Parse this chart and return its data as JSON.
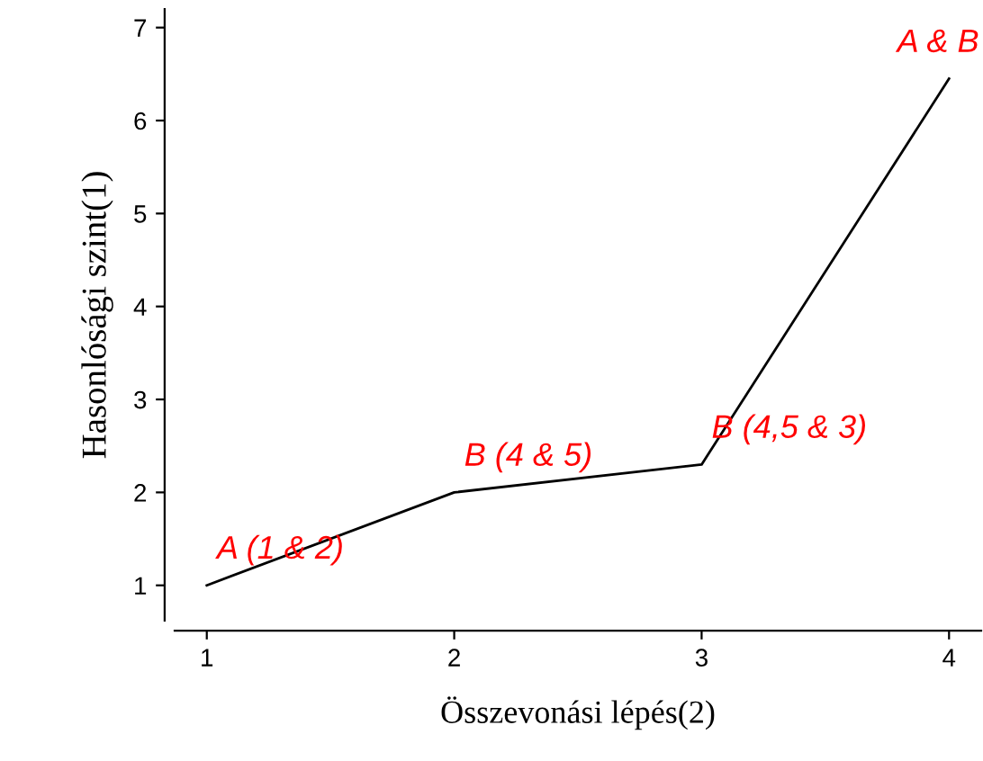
{
  "chart_data": {
    "type": "line",
    "xlabel": "Összevonási lépés(2)",
    "ylabel": "Hasonlósági szint(1)",
    "x": [
      1,
      2,
      3,
      4
    ],
    "series": [
      {
        "color": "#000000",
        "values": [
          1,
          2,
          2.3,
          6.45
        ]
      }
    ],
    "xlim": [
      0.87,
      4.13
    ],
    "ylim": [
      0.62,
      7.2
    ],
    "xticks": [
      1,
      2,
      3,
      4
    ],
    "yticks": [
      1,
      2,
      3,
      4,
      5,
      6,
      7
    ],
    "grid": false,
    "marker": "none",
    "line_style": "solid",
    "annotations": [
      {
        "text": "A (1 & 2)",
        "x": 1,
        "y": 1
      },
      {
        "text": "B (4 & 5)",
        "x": 2,
        "y": 2
      },
      {
        "text": "B (4,5 & 3)",
        "x": 3,
        "y": 2.3
      },
      {
        "text": "A & B",
        "x": 4,
        "y": 6.45
      }
    ]
  }
}
